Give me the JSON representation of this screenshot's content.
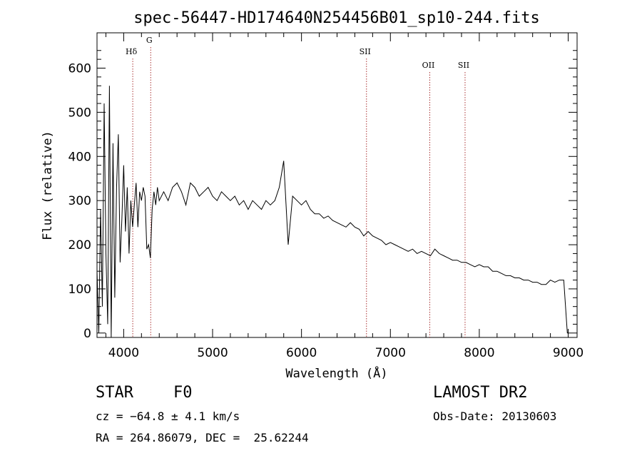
{
  "chart_data": {
    "type": "line",
    "title": "spec-56447-HD174640N254456B01_sp10-244.fits",
    "xlabel": "Wavelength (Å)",
    "ylabel": "Flux (relative)",
    "xlim": [
      3700,
      9100
    ],
    "ylim": [
      -10,
      680
    ],
    "x_ticks": [
      4000,
      5000,
      6000,
      7000,
      8000,
      9000
    ],
    "y_ticks": [
      0,
      100,
      200,
      300,
      400,
      500,
      600
    ],
    "grid": false,
    "series": [
      {
        "x": [
          3700,
          3720,
          3740,
          3760,
          3780,
          3800,
          3820,
          3840,
          3860,
          3880,
          3900,
          3920,
          3940,
          3960,
          3980,
          4000,
          4020,
          4040,
          4060,
          4080,
          4100,
          4120,
          4140,
          4160,
          4180,
          4200,
          4220,
          4240,
          4260,
          4280,
          4300,
          4320,
          4340,
          4360,
          4380,
          4400,
          4450,
          4500,
          4550,
          4600,
          4650,
          4700,
          4750,
          4800,
          4850,
          4900,
          4950,
          5000,
          5050,
          5100,
          5150,
          5200,
          5250,
          5300,
          5350,
          5400,
          5450,
          5500,
          5550,
          5600,
          5650,
          5700,
          5750,
          5800,
          5850,
          5900,
          5950,
          6000,
          6050,
          6100,
          6150,
          6200,
          6250,
          6300,
          6350,
          6400,
          6450,
          6500,
          6550,
          6600,
          6650,
          6700,
          6750,
          6800,
          6850,
          6900,
          6950,
          7000,
          7050,
          7100,
          7150,
          7200,
          7250,
          7300,
          7350,
          7400,
          7450,
          7500,
          7550,
          7600,
          7650,
          7700,
          7750,
          7800,
          7850,
          7900,
          7950,
          8000,
          8050,
          8100,
          8150,
          8200,
          8250,
          8300,
          8350,
          8400,
          8450,
          8500,
          8550,
          8600,
          8650,
          8700,
          8750,
          8800,
          8850,
          8900,
          8950,
          8990,
          9000
        ],
        "y": [
          140,
          0,
          280,
          60,
          520,
          180,
          20,
          560,
          -10,
          430,
          80,
          330,
          450,
          160,
          260,
          380,
          230,
          330,
          180,
          300,
          240,
          290,
          340,
          240,
          320,
          300,
          330,
          310,
          190,
          200,
          170,
          280,
          320,
          290,
          330,
          300,
          320,
          300,
          330,
          340,
          320,
          290,
          340,
          330,
          310,
          320,
          330,
          310,
          300,
          320,
          310,
          300,
          310,
          290,
          300,
          280,
          300,
          290,
          280,
          300,
          290,
          300,
          330,
          390,
          200,
          310,
          300,
          290,
          300,
          280,
          270,
          270,
          260,
          265,
          255,
          250,
          245,
          240,
          250,
          240,
          235,
          220,
          230,
          220,
          215,
          210,
          200,
          205,
          200,
          195,
          190,
          185,
          190,
          180,
          185,
          180,
          175,
          190,
          180,
          175,
          170,
          165,
          165,
          160,
          160,
          155,
          150,
          155,
          150,
          150,
          140,
          140,
          135,
          130,
          130,
          125,
          125,
          120,
          120,
          115,
          115,
          110,
          110,
          120,
          115,
          120,
          120,
          0,
          0
        ],
        "name": ""
      }
    ],
    "annotations": [
      {
        "label": "Hδ",
        "x": 4102
      },
      {
        "label": "G",
        "x": 4304
      },
      {
        "label": "SII",
        "x": 6731
      },
      {
        "label": "OII",
        "x": 7443
      },
      {
        "label": "SII",
        "x": 7840
      }
    ],
    "line_color": "#000000",
    "marker_color": "#aa3333"
  },
  "footer": {
    "object_class": "STAR",
    "subclass": "F0",
    "survey": "LAMOST DR2",
    "cz": "cz = −64.8 ± 4.1 km/s",
    "obs_date": "Obs-Date: 20130603",
    "coords": "RA = 264.86079, DEC =  25.62244"
  }
}
